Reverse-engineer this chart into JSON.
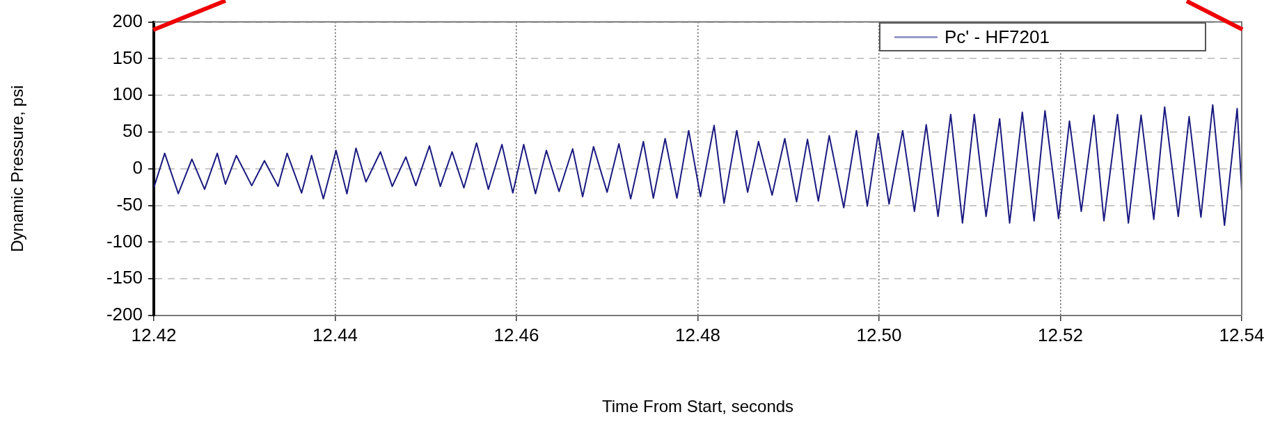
{
  "chart_data": {
    "type": "line",
    "xlabel": "Time From Start, seconds",
    "ylabel": "Dynamic Pressure, psi",
    "x": [
      12.42,
      12.4212,
      12.4227,
      12.4242,
      12.4256,
      12.427,
      12.4279,
      12.4291,
      12.4308,
      12.4322,
      12.4337,
      12.4347,
      12.4363,
      12.4374,
      12.4387,
      12.4401,
      12.4413,
      12.4423,
      12.4434,
      12.445,
      12.4463,
      12.4478,
      12.4489,
      12.4504,
      12.4516,
      12.4529,
      12.4542,
      12.4556,
      12.4569,
      12.4584,
      12.4596,
      12.4608,
      12.4621,
      12.4633,
      12.4647,
      12.4662,
      12.4673,
      12.4685,
      12.47,
      12.4713,
      12.4726,
      12.474,
      12.4751,
      12.4764,
      12.4777,
      12.479,
      12.4803,
      12.4818,
      12.4829,
      12.4843,
      12.4855,
      12.4867,
      12.4882,
      12.4896,
      12.4909,
      12.4921,
      12.4933,
      12.4945,
      12.4961,
      12.4975,
      12.4987,
      12.4999,
      12.5011,
      12.5026,
      12.5039,
      12.5052,
      12.5065,
      12.5079,
      12.5092,
      12.5105,
      12.5118,
      12.5133,
      12.5144,
      12.5158,
      12.5171,
      12.5183,
      12.5198,
      12.521,
      12.5223,
      12.5237,
      12.5248,
      12.5263,
      12.5275,
      12.5289,
      12.5303,
      12.5315,
      12.533,
      12.5342,
      12.5355,
      12.5368,
      12.5381,
      12.5395,
      12.54
    ],
    "series": [
      {
        "name": "Pc' - HF7201",
        "color": "#1a1a80",
        "values": [
          -26,
          21,
          -34,
          13,
          -28,
          21,
          -21,
          18,
          -23,
          11,
          -24,
          21,
          -33,
          18,
          -41,
          25,
          -34,
          28,
          -18,
          23,
          -24,
          16,
          -23,
          31,
          -24,
          23,
          -26,
          35,
          -28,
          33,
          -33,
          33,
          -34,
          25,
          -31,
          27,
          -38,
          30,
          -32,
          34,
          -41,
          37,
          -40,
          41,
          -40,
          52,
          -38,
          59,
          -47,
          52,
          -32,
          37,
          -36,
          41,
          -45,
          40,
          -44,
          45,
          -53,
          52,
          -51,
          48,
          -48,
          52,
          -58,
          60,
          -65,
          74,
          -74,
          74,
          -65,
          68,
          -74,
          77,
          -71,
          79,
          -68,
          65,
          -58,
          73,
          -71,
          74,
          -74,
          73,
          -69,
          84,
          -65,
          71,
          -66,
          87,
          -77,
          82,
          -30
        ]
      }
    ],
    "xlim": [
      12.42,
      12.54
    ],
    "xticks": [
      12.42,
      12.44,
      12.46,
      12.48,
      {
        "value": 12.5,
        "label": "12.50"
      },
      12.52,
      12.54
    ],
    "ylim": [
      -200,
      200
    ],
    "yticks": [
      -200,
      -150,
      -100,
      -50,
      0,
      50,
      100,
      150,
      200
    ],
    "grid": true,
    "legend": "top right",
    "marker": "none",
    "line_style": "solid"
  }
}
